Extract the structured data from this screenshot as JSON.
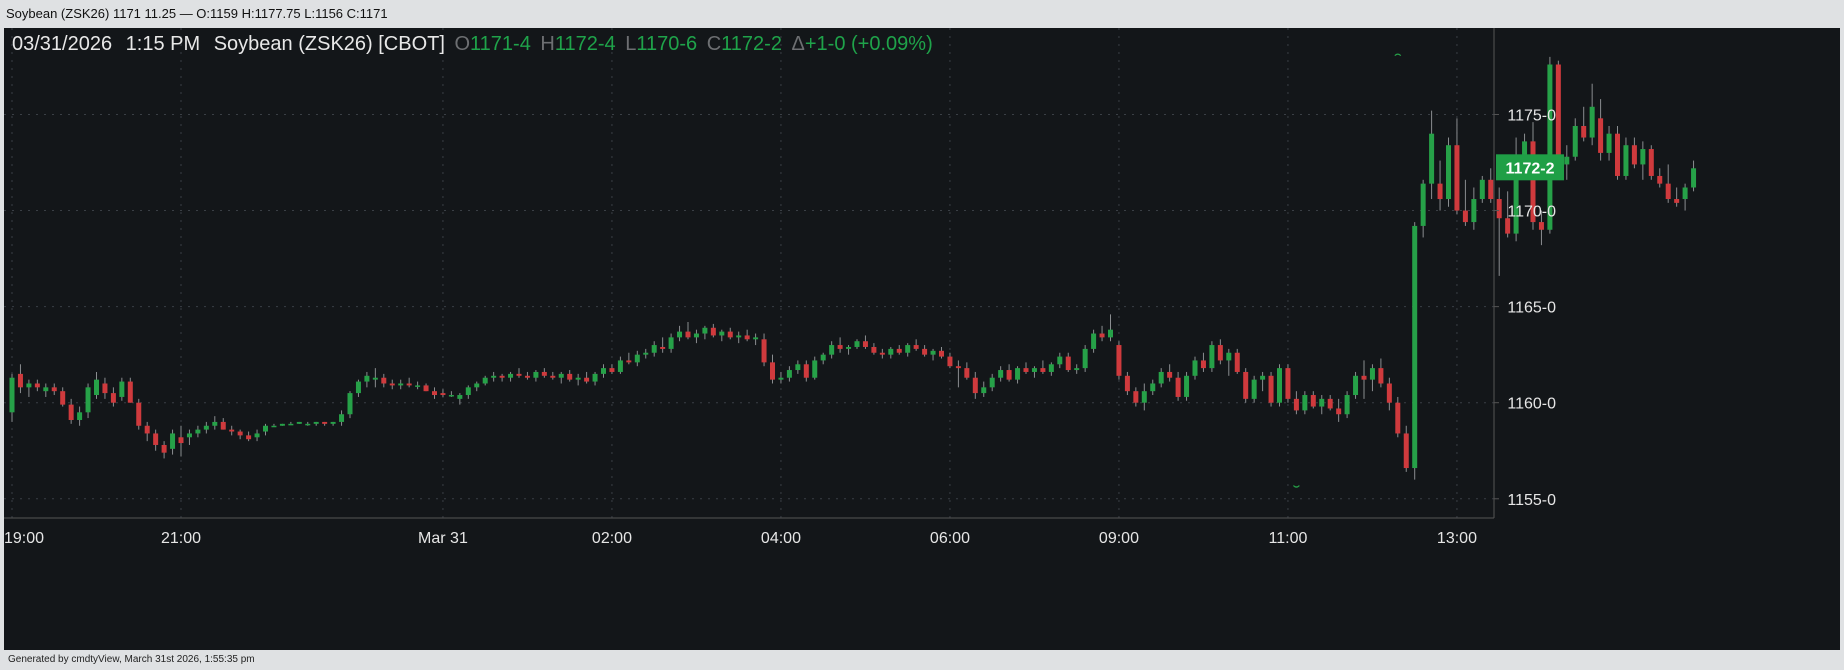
{
  "window_title": "Soybean (ZSK26) 1171 11.25 — O:1159 H:1177.75 L:1156 C:1171",
  "footer": "Generated by cmdtyView, March 31st 2026, 1:55:35 pm",
  "header": {
    "date": "03/31/2026",
    "time": "1:15 PM",
    "symbol": "Soybean (ZSK26) [CBOT]",
    "open_label": "O",
    "open": "1171-4",
    "high_label": "H",
    "high": "1172-4",
    "low_label": "L",
    "low": "1170-6",
    "close_label": "C",
    "close": "1172-2",
    "change_label": "Δ",
    "change": "+1-0 (+0.09%)"
  },
  "colors": {
    "up": "#26a148",
    "down": "#cf3a3d",
    "background": "#131619",
    "grid": "#3a3f45",
    "text": "#e6e6e6",
    "last_price_bg": "#1f9f46"
  },
  "chart_data": {
    "type": "candlestick",
    "ylim": [
      1154,
      1179.5
    ],
    "y_ticks": [
      {
        "value": 1155,
        "label": "1155-0"
      },
      {
        "value": 1160,
        "label": "1160-0"
      },
      {
        "value": 1165,
        "label": "1165-0"
      },
      {
        "value": 1170,
        "label": "1170-0"
      },
      {
        "value": 1175,
        "label": "1175-0"
      }
    ],
    "x_ticks": [
      "19:00",
      "21:00",
      "Mar 31",
      "02:00",
      "04:00",
      "06:00",
      "09:00",
      "11:00",
      "13:00"
    ],
    "x_tick_index": [
      0,
      20,
      51,
      71,
      91,
      111,
      131,
      151,
      171
    ],
    "last_price": {
      "value": 1172.25,
      "label": "1172-2"
    },
    "high_marker": 1177.75,
    "low_marker": 1156,
    "candles": [
      [
        1159.5,
        1161.5,
        1159.0,
        1161.3
      ],
      [
        1161.5,
        1162.0,
        1160.5,
        1160.8
      ],
      [
        1160.8,
        1161.2,
        1160.3,
        1161.0
      ],
      [
        1161.0,
        1161.2,
        1160.6,
        1160.8
      ],
      [
        1160.6,
        1161.0,
        1160.3,
        1160.8
      ],
      [
        1160.8,
        1161.0,
        1160.4,
        1160.6
      ],
      [
        1160.6,
        1160.8,
        1159.8,
        1159.9
      ],
      [
        1159.9,
        1160.2,
        1158.9,
        1159.1
      ],
      [
        1159.1,
        1159.8,
        1158.8,
        1159.5
      ],
      [
        1159.5,
        1161.0,
        1159.2,
        1160.8
      ],
      [
        1160.4,
        1161.6,
        1160.2,
        1161.2
      ],
      [
        1161.0,
        1161.3,
        1160.2,
        1160.5
      ],
      [
        1160.5,
        1160.8,
        1159.8,
        1160.0
      ],
      [
        1160.3,
        1161.3,
        1160.1,
        1161.1
      ],
      [
        1161.1,
        1161.3,
        1160.0,
        1160.0
      ],
      [
        1160.0,
        1160.2,
        1158.6,
        1158.8
      ],
      [
        1158.8,
        1159.0,
        1158.0,
        1158.4
      ],
      [
        1158.4,
        1158.6,
        1157.5,
        1157.8
      ],
      [
        1157.8,
        1158.0,
        1157.1,
        1157.4
      ],
      [
        1157.6,
        1158.6,
        1157.3,
        1158.4
      ],
      [
        1158.2,
        1158.8,
        1157.2,
        1157.9
      ],
      [
        1158.2,
        1158.6,
        1157.8,
        1158.4
      ],
      [
        1158.4,
        1158.8,
        1158.2,
        1158.6
      ],
      [
        1158.6,
        1159.0,
        1158.4,
        1158.8
      ],
      [
        1158.8,
        1159.3,
        1158.6,
        1159.0
      ],
      [
        1159.0,
        1159.2,
        1158.6,
        1158.6
      ],
      [
        1158.6,
        1158.8,
        1158.3,
        1158.5
      ],
      [
        1158.5,
        1158.6,
        1158.1,
        1158.3
      ],
      [
        1158.3,
        1158.5,
        1158.0,
        1158.1
      ],
      [
        1158.2,
        1158.6,
        1158.0,
        1158.4
      ],
      [
        1158.5,
        1158.9,
        1158.3,
        1158.8
      ],
      [
        1158.8,
        1158.9,
        1158.8,
        1158.8
      ],
      [
        1158.8,
        1158.9,
        1158.8,
        1158.9
      ],
      [
        1158.9,
        1159.0,
        1158.9,
        1158.9
      ],
      [
        1158.9,
        1159.0,
        1158.9,
        1159.0
      ],
      [
        1158.9,
        1159.0,
        1158.8,
        1158.9
      ],
      [
        1158.9,
        1159.0,
        1158.8,
        1159.0
      ],
      [
        1159.0,
        1159.0,
        1158.8,
        1158.9
      ],
      [
        1158.9,
        1159.0,
        1158.8,
        1159.0
      ],
      [
        1159.0,
        1159.6,
        1158.8,
        1159.4
      ],
      [
        1159.4,
        1160.6,
        1159.2,
        1160.5
      ],
      [
        1160.5,
        1161.2,
        1160.3,
        1161.1
      ],
      [
        1161.1,
        1161.6,
        1160.8,
        1161.4
      ],
      [
        1161.2,
        1161.8,
        1160.8,
        1161.3
      ],
      [
        1161.3,
        1161.5,
        1160.8,
        1161.0
      ],
      [
        1161.0,
        1161.2,
        1160.7,
        1160.9
      ],
      [
        1160.9,
        1161.2,
        1160.7,
        1161.0
      ],
      [
        1161.0,
        1161.3,
        1160.8,
        1160.9
      ],
      [
        1160.9,
        1161.1,
        1160.7,
        1160.9
      ],
      [
        1160.9,
        1161.0,
        1160.6,
        1160.6
      ],
      [
        1160.6,
        1160.8,
        1160.2,
        1160.4
      ],
      [
        1160.5,
        1160.7,
        1160.3,
        1160.4
      ],
      [
        1160.4,
        1160.6,
        1160.3,
        1160.4
      ],
      [
        1160.2,
        1160.5,
        1159.9,
        1160.4
      ],
      [
        1160.4,
        1160.9,
        1160.2,
        1160.8
      ],
      [
        1160.8,
        1161.1,
        1160.6,
        1161.0
      ],
      [
        1161.0,
        1161.4,
        1160.9,
        1161.3
      ],
      [
        1161.3,
        1161.6,
        1161.1,
        1161.4
      ],
      [
        1161.4,
        1161.5,
        1161.1,
        1161.3
      ],
      [
        1161.3,
        1161.6,
        1161.1,
        1161.5
      ],
      [
        1161.5,
        1161.8,
        1161.3,
        1161.4
      ],
      [
        1161.4,
        1161.6,
        1161.2,
        1161.3
      ],
      [
        1161.3,
        1161.7,
        1161.1,
        1161.6
      ],
      [
        1161.6,
        1161.8,
        1161.3,
        1161.4
      ],
      [
        1161.4,
        1161.6,
        1161.2,
        1161.3
      ],
      [
        1161.3,
        1161.6,
        1161.0,
        1161.5
      ],
      [
        1161.5,
        1161.7,
        1161.1,
        1161.2
      ],
      [
        1161.2,
        1161.5,
        1160.9,
        1161.3
      ],
      [
        1161.3,
        1161.6,
        1161.0,
        1161.1
      ],
      [
        1161.1,
        1161.6,
        1160.9,
        1161.5
      ],
      [
        1161.5,
        1162.0,
        1161.3,
        1161.8
      ],
      [
        1161.8,
        1162.0,
        1161.5,
        1161.6
      ],
      [
        1161.6,
        1162.4,
        1161.5,
        1162.2
      ],
      [
        1162.2,
        1162.6,
        1162.0,
        1162.1
      ],
      [
        1162.1,
        1162.7,
        1161.9,
        1162.5
      ],
      [
        1162.5,
        1162.8,
        1162.3,
        1162.6
      ],
      [
        1162.6,
        1163.2,
        1162.4,
        1163.0
      ],
      [
        1162.9,
        1163.4,
        1162.6,
        1162.8
      ],
      [
        1162.8,
        1163.6,
        1162.6,
        1163.4
      ],
      [
        1163.4,
        1164.0,
        1163.2,
        1163.7
      ],
      [
        1163.7,
        1164.2,
        1163.3,
        1163.4
      ],
      [
        1163.4,
        1163.8,
        1163.1,
        1163.6
      ],
      [
        1163.6,
        1164.0,
        1163.3,
        1163.9
      ],
      [
        1163.9,
        1164.1,
        1163.4,
        1163.5
      ],
      [
        1163.5,
        1163.8,
        1163.2,
        1163.7
      ],
      [
        1163.7,
        1163.9,
        1163.3,
        1163.4
      ],
      [
        1163.4,
        1163.7,
        1163.1,
        1163.5
      ],
      [
        1163.5,
        1163.8,
        1163.2,
        1163.3
      ],
      [
        1163.3,
        1163.6,
        1163.0,
        1163.4
      ],
      [
        1163.3,
        1163.6,
        1161.9,
        1162.1
      ],
      [
        1162.1,
        1162.5,
        1161.0,
        1161.2
      ],
      [
        1161.2,
        1161.6,
        1161.0,
        1161.3
      ],
      [
        1161.3,
        1161.9,
        1161.1,
        1161.7
      ],
      [
        1161.7,
        1162.2,
        1161.5,
        1162.0
      ],
      [
        1162.0,
        1162.2,
        1161.1,
        1161.3
      ],
      [
        1161.3,
        1162.4,
        1161.2,
        1162.2
      ],
      [
        1162.2,
        1162.6,
        1162.0,
        1162.5
      ],
      [
        1162.5,
        1163.2,
        1162.3,
        1163.0
      ],
      [
        1163.0,
        1163.4,
        1162.6,
        1162.8
      ],
      [
        1162.8,
        1163.0,
        1162.5,
        1162.9
      ],
      [
        1162.9,
        1163.3,
        1162.8,
        1163.2
      ],
      [
        1163.2,
        1163.5,
        1162.8,
        1162.9
      ],
      [
        1162.9,
        1163.1,
        1162.5,
        1162.6
      ],
      [
        1162.6,
        1162.8,
        1162.3,
        1162.5
      ],
      [
        1162.5,
        1162.9,
        1162.3,
        1162.8
      ],
      [
        1162.8,
        1163.0,
        1162.5,
        1162.6
      ],
      [
        1162.6,
        1163.1,
        1162.4,
        1163.0
      ],
      [
        1163.0,
        1163.3,
        1162.7,
        1162.8
      ],
      [
        1162.8,
        1163.0,
        1162.4,
        1162.5
      ],
      [
        1162.5,
        1162.8,
        1162.2,
        1162.7
      ],
      [
        1162.7,
        1162.9,
        1162.3,
        1162.4
      ],
      [
        1162.4,
        1162.6,
        1161.8,
        1161.9
      ],
      [
        1161.9,
        1162.2,
        1160.8,
        1161.8
      ],
      [
        1161.8,
        1162.1,
        1161.2,
        1161.3
      ],
      [
        1161.3,
        1161.6,
        1160.2,
        1160.5
      ],
      [
        1160.5,
        1161.1,
        1160.3,
        1160.8
      ],
      [
        1160.8,
        1161.5,
        1160.6,
        1161.3
      ],
      [
        1161.3,
        1161.9,
        1161.1,
        1161.7
      ],
      [
        1161.7,
        1162.0,
        1161.1,
        1161.2
      ],
      [
        1161.2,
        1161.9,
        1161.0,
        1161.8
      ],
      [
        1161.8,
        1162.1,
        1161.5,
        1161.6
      ],
      [
        1161.6,
        1161.9,
        1161.3,
        1161.8
      ],
      [
        1161.8,
        1162.2,
        1161.5,
        1161.6
      ],
      [
        1161.6,
        1162.1,
        1161.4,
        1162.0
      ],
      [
        1162.0,
        1162.6,
        1161.8,
        1162.4
      ],
      [
        1162.4,
        1162.6,
        1161.6,
        1161.7
      ],
      [
        1161.7,
        1162.0,
        1161.5,
        1161.8
      ],
      [
        1161.8,
        1163.0,
        1161.6,
        1162.8
      ],
      [
        1162.8,
        1163.8,
        1162.6,
        1163.6
      ],
      [
        1163.6,
        1164.0,
        1163.2,
        1163.4
      ],
      [
        1163.4,
        1164.6,
        1163.2,
        1163.8
      ],
      [
        1163.0,
        1163.2,
        1161.2,
        1161.4
      ],
      [
        1161.4,
        1161.6,
        1160.4,
        1160.6
      ],
      [
        1160.6,
        1160.8,
        1159.8,
        1160.0
      ],
      [
        1160.0,
        1161.0,
        1159.6,
        1160.6
      ],
      [
        1160.6,
        1161.2,
        1160.4,
        1161.0
      ],
      [
        1161.0,
        1161.8,
        1160.8,
        1161.6
      ],
      [
        1161.6,
        1162.0,
        1161.1,
        1161.3
      ],
      [
        1161.3,
        1161.6,
        1160.1,
        1160.3
      ],
      [
        1160.3,
        1161.6,
        1160.1,
        1161.4
      ],
      [
        1161.4,
        1162.4,
        1161.2,
        1162.2
      ],
      [
        1162.2,
        1162.6,
        1161.6,
        1161.8
      ],
      [
        1161.8,
        1163.2,
        1161.6,
        1163.0
      ],
      [
        1163.0,
        1163.3,
        1162.0,
        1162.2
      ],
      [
        1162.2,
        1162.8,
        1161.4,
        1162.6
      ],
      [
        1162.6,
        1162.8,
        1161.5,
        1161.6
      ],
      [
        1161.6,
        1161.8,
        1160.0,
        1160.2
      ],
      [
        1160.2,
        1161.4,
        1160.0,
        1161.2
      ],
      [
        1161.2,
        1161.6,
        1160.6,
        1161.4
      ],
      [
        1161.4,
        1161.6,
        1159.8,
        1160.0
      ],
      [
        1160.0,
        1162.0,
        1159.8,
        1161.8
      ],
      [
        1161.8,
        1162.0,
        1160.0,
        1160.2
      ],
      [
        1160.2,
        1160.6,
        1159.4,
        1159.6
      ],
      [
        1159.6,
        1160.6,
        1159.4,
        1160.4
      ],
      [
        1160.4,
        1160.6,
        1159.7,
        1159.8
      ],
      [
        1159.8,
        1160.4,
        1159.4,
        1160.2
      ],
      [
        1160.2,
        1160.4,
        1159.6,
        1159.7
      ],
      [
        1159.7,
        1160.2,
        1159.0,
        1159.4
      ],
      [
        1159.4,
        1160.6,
        1159.2,
        1160.4
      ],
      [
        1160.4,
        1161.6,
        1160.2,
        1161.4
      ],
      [
        1161.4,
        1162.2,
        1160.2,
        1161.2
      ],
      [
        1161.2,
        1162.0,
        1160.6,
        1161.8
      ],
      [
        1161.8,
        1162.3,
        1160.8,
        1161.0
      ],
      [
        1161.0,
        1161.3,
        1159.6,
        1160.0
      ],
      [
        1160.0,
        1160.3,
        1158.2,
        1158.4
      ],
      [
        1158.4,
        1158.8,
        1156.4,
        1156.6
      ],
      [
        1156.6,
        1169.4,
        1156.0,
        1169.2
      ],
      [
        1169.2,
        1171.6,
        1168.6,
        1171.4
      ],
      [
        1171.4,
        1175.2,
        1170.6,
        1174.0
      ],
      [
        1171.4,
        1172.6,
        1170.0,
        1170.6
      ],
      [
        1170.6,
        1173.8,
        1170.2,
        1173.4
      ],
      [
        1173.4,
        1174.8,
        1169.8,
        1170.0
      ],
      [
        1170.0,
        1171.6,
        1169.2,
        1169.4
      ],
      [
        1169.4,
        1171.2,
        1169.0,
        1170.6
      ],
      [
        1170.6,
        1171.8,
        1170.4,
        1171.6
      ],
      [
        1171.6,
        1172.2,
        1170.4,
        1170.6
      ],
      [
        1170.6,
        1171.2,
        1166.6,
        1169.6
      ],
      [
        1169.6,
        1171.0,
        1168.6,
        1168.8
      ],
      [
        1168.8,
        1173.8,
        1168.4,
        1172.6
      ],
      [
        1172.6,
        1174.0,
        1172.0,
        1173.6
      ],
      [
        1173.6,
        1174.6,
        1169.0,
        1169.4
      ],
      [
        1169.4,
        1170.0,
        1168.2,
        1169.0
      ],
      [
        1169.0,
        1178.0,
        1168.8,
        1177.6
      ],
      [
        1177.6,
        1177.8,
        1172.0,
        1172.4
      ],
      [
        1172.4,
        1173.4,
        1171.6,
        1172.8
      ],
      [
        1172.8,
        1174.8,
        1172.6,
        1174.4
      ],
      [
        1174.4,
        1175.4,
        1173.6,
        1173.8
      ],
      [
        1173.8,
        1176.6,
        1173.4,
        1175.4
      ],
      [
        1174.8,
        1175.8,
        1172.6,
        1173.0
      ],
      [
        1173.0,
        1174.4,
        1172.6,
        1174.0
      ],
      [
        1174.0,
        1174.4,
        1171.6,
        1171.8
      ],
      [
        1171.8,
        1173.8,
        1171.6,
        1173.4
      ],
      [
        1173.4,
        1173.8,
        1172.2,
        1172.4
      ],
      [
        1172.4,
        1173.6,
        1171.6,
        1173.2
      ],
      [
        1173.2,
        1173.4,
        1171.6,
        1171.8
      ],
      [
        1171.8,
        1172.2,
        1171.2,
        1171.4
      ],
      [
        1171.4,
        1172.4,
        1170.4,
        1170.6
      ],
      [
        1170.6,
        1171.2,
        1170.2,
        1170.4
      ],
      [
        1170.6,
        1171.4,
        1170.0,
        1171.2
      ],
      [
        1171.2,
        1172.6,
        1171.0,
        1172.2
      ]
    ]
  }
}
